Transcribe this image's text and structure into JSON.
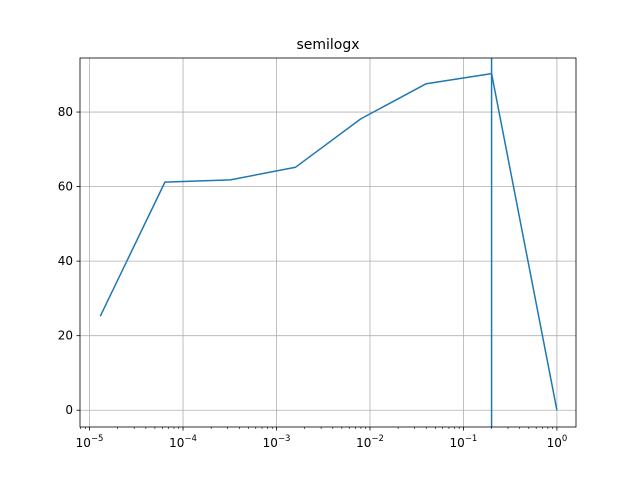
{
  "chart_data": {
    "type": "line",
    "title": "semilogx",
    "xlabel": "",
    "ylabel": "",
    "x_scale": "log",
    "xlim": [
      7.9e-06,
      1.6
    ],
    "ylim": [
      -4.5,
      94.5
    ],
    "grid": true,
    "x_ticks": [
      {
        "value": 1e-05,
        "base": "10",
        "exp": "−5"
      },
      {
        "value": 0.0001,
        "base": "10",
        "exp": "−4"
      },
      {
        "value": 0.001,
        "base": "10",
        "exp": "−3"
      },
      {
        "value": 0.01,
        "base": "10",
        "exp": "−2"
      },
      {
        "value": 0.1,
        "base": "10",
        "exp": "−1"
      },
      {
        "value": 1,
        "base": "10",
        "exp": "0"
      }
    ],
    "y_ticks": [
      {
        "value": 0,
        "label": "0"
      },
      {
        "value": 20,
        "label": "20"
      },
      {
        "value": 40,
        "label": "40"
      },
      {
        "value": 60,
        "label": "60"
      },
      {
        "value": 80,
        "label": "80"
      }
    ],
    "series": [
      {
        "color": "#1f77b4",
        "points": [
          {
            "x": 1.3e-05,
            "y": 25.2
          },
          {
            "x": 6.4e-05,
            "y": 61.2
          },
          {
            "x": 0.00032,
            "y": 61.8
          },
          {
            "x": 0.0016,
            "y": 65.2
          },
          {
            "x": 0.008,
            "y": 78.2
          },
          {
            "x": 0.04,
            "y": 87.6
          },
          {
            "x": 0.2,
            "y": 90.3
          },
          {
            "x": 1,
            "y": 0
          }
        ]
      }
    ],
    "vertical_line": {
      "x": 0.2,
      "color": "#1f77b4"
    }
  }
}
